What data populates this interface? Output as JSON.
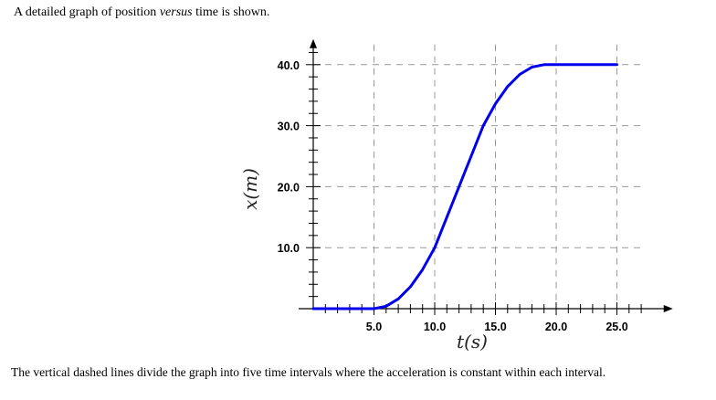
{
  "intro": {
    "before": "A detailed graph of position ",
    "emphasis": "versus",
    "after": " time is shown."
  },
  "caption": "The vertical dashed lines divide the graph into five time intervals where the acceleration is constant within each interval.",
  "chart_data": {
    "type": "line",
    "xlabel": "t(s)",
    "ylabel": "x(m)",
    "xlim": [
      0,
      27.5
    ],
    "ylim": [
      0,
      40
    ],
    "x_ticks": [
      "5.0",
      "10.0",
      "15.0",
      "20.0",
      "25.0"
    ],
    "y_ticks": [
      "10.0",
      "20.0",
      "30.0",
      "40.0"
    ],
    "grid": "dashed",
    "series": [
      {
        "color": "#0000ee",
        "x": [
          0,
          5,
          6,
          7,
          8,
          9,
          10,
          11,
          12,
          13,
          14,
          15,
          16,
          17,
          18,
          19,
          20,
          25
        ],
        "y": [
          0,
          0,
          0.4,
          1.6,
          3.6,
          6.4,
          10,
          15,
          20,
          25,
          30,
          33.6,
          36.4,
          38.4,
          39.6,
          40,
          40,
          40
        ]
      }
    ]
  }
}
